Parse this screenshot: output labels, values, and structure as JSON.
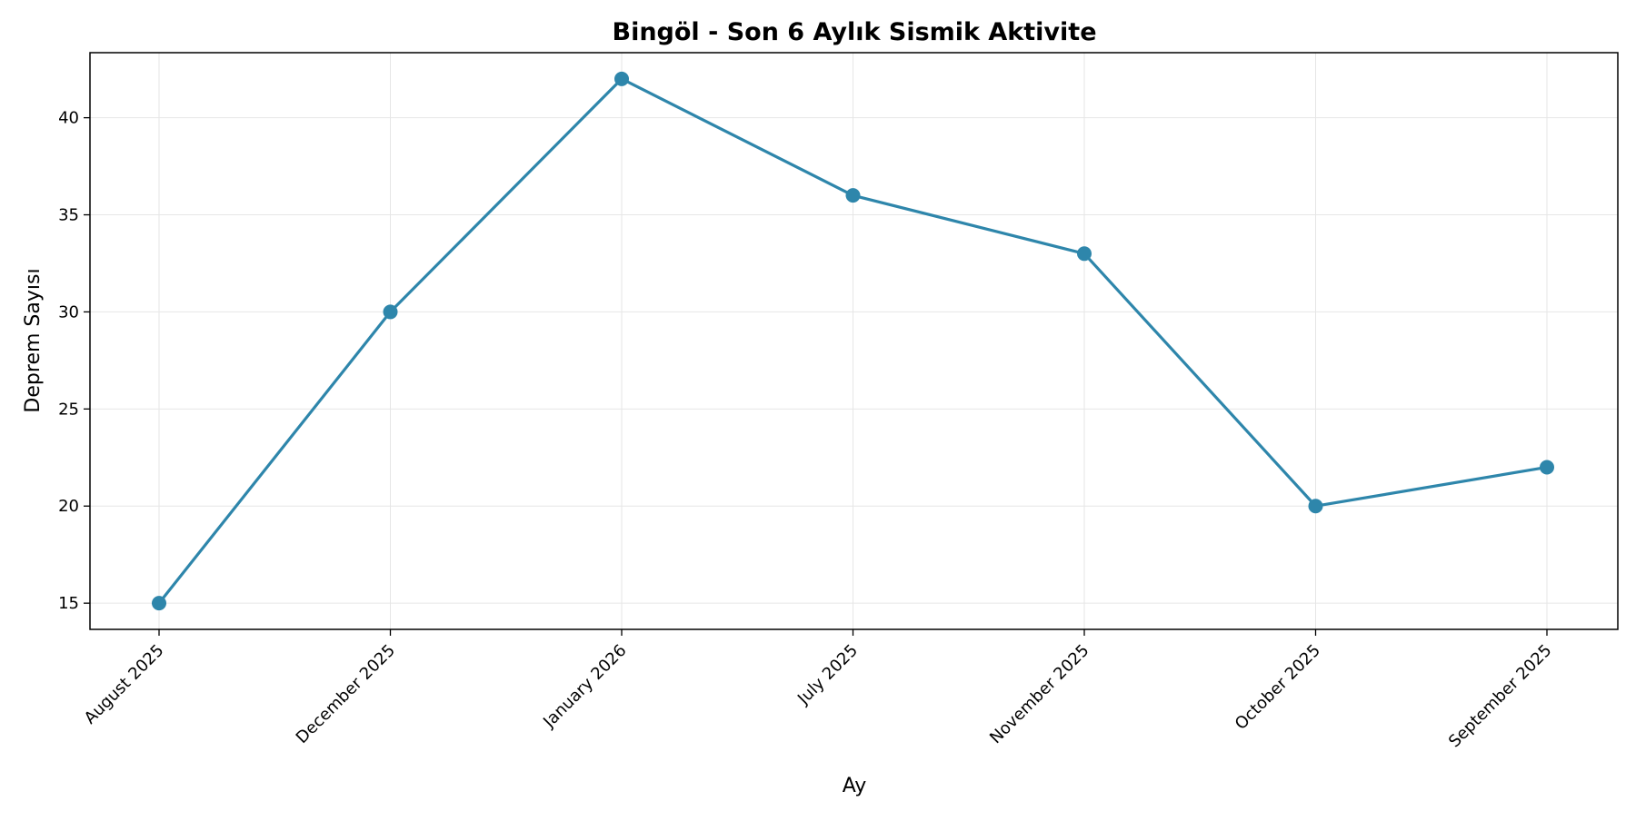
{
  "chart_data": {
    "type": "line",
    "title": "Bingöl - Son 6 Aylık Sismik Aktivite",
    "xlabel": "Ay",
    "ylabel": "Deprem Sayısı",
    "categories": [
      "August 2025",
      "December 2025",
      "January 2026",
      "July 2025",
      "November 2025",
      "October 2025",
      "September 2025"
    ],
    "series": [
      {
        "values": [
          15,
          30,
          42,
          36,
          33,
          20,
          22
        ]
      }
    ],
    "ylim": [
      13.65,
      43.35
    ],
    "yticks": [
      15,
      20,
      25,
      30,
      35,
      40
    ],
    "grid": true,
    "legend": "none",
    "colors": {
      "line": "#2e86ab",
      "grid": "#e6e6e6",
      "axis": "#000000"
    }
  }
}
